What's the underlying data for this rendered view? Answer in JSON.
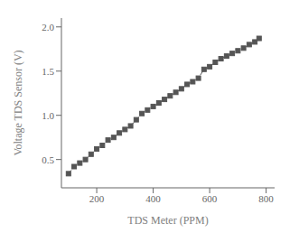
{
  "chart_data": {
    "type": "line",
    "xlabel": "TDS Meter (PPM)",
    "ylabel": "Voltage TDS Sensor (V)",
    "x": [
      100,
      120,
      140,
      160,
      180,
      200,
      220,
      240,
      260,
      280,
      300,
      320,
      340,
      360,
      380,
      400,
      420,
      440,
      460,
      480,
      500,
      520,
      540,
      560,
      580,
      600,
      620,
      640,
      660,
      680,
      700,
      720,
      740,
      760,
      775
    ],
    "values": [
      0.34,
      0.42,
      0.46,
      0.5,
      0.56,
      0.62,
      0.66,
      0.72,
      0.75,
      0.8,
      0.84,
      0.88,
      0.95,
      1.02,
      1.06,
      1.1,
      1.14,
      1.18,
      1.22,
      1.26,
      1.3,
      1.35,
      1.38,
      1.42,
      1.52,
      1.55,
      1.6,
      1.64,
      1.67,
      1.7,
      1.73,
      1.76,
      1.8,
      1.83,
      1.87
    ],
    "xlim": [
      75,
      830
    ],
    "ylim": [
      0.18,
      2.1
    ],
    "xticks": [
      200,
      400,
      600,
      800
    ],
    "yticks": [
      {
        "value": 0.5,
        "label": "0.5"
      },
      {
        "value": 1.0,
        "label": "1.0"
      },
      {
        "value": 1.5,
        "label": "1.5"
      },
      {
        "value": 2.0,
        "label": "2.0"
      }
    ],
    "color": "#555555",
    "marker": "square",
    "line_style": "dashed",
    "grid": false
  }
}
